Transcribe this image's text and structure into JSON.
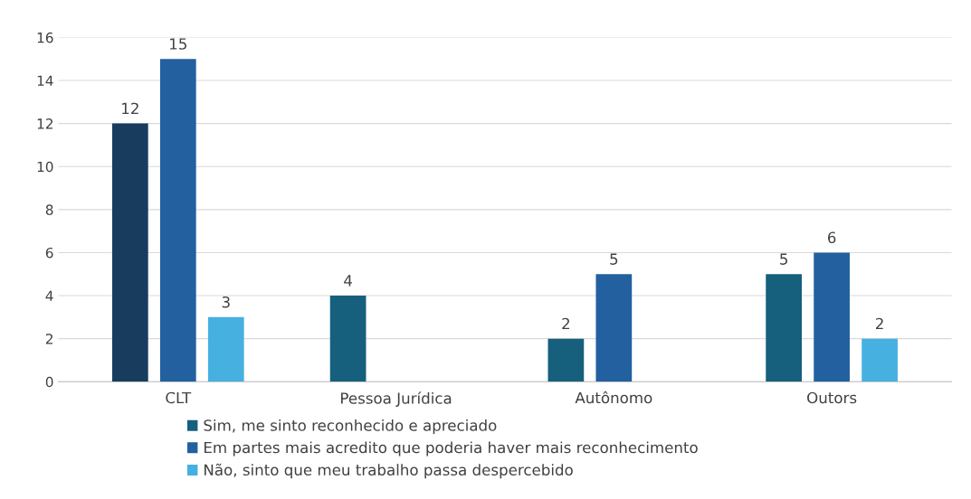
{
  "chart_data": {
    "type": "bar",
    "categories": [
      "CLT",
      "Pessoa Jurídica",
      "Autônomo",
      "Outors"
    ],
    "series": [
      {
        "name": "Sim, me sinto reconhecido e apreciado",
        "color": "#165f7d",
        "colors": [
          "#173c5e",
          "#165f7d",
          "#165f7d",
          "#165f7d"
        ],
        "values": [
          12,
          4,
          2,
          5
        ]
      },
      {
        "name": "Em partes mais acredito que poderia haver mais reconhecimento",
        "color": "#2260a0",
        "values": [
          15,
          null,
          5,
          6
        ]
      },
      {
        "name": "Não, sinto que meu trabalho passa despercebido",
        "color": "#46b0e0",
        "values": [
          3,
          null,
          null,
          2
        ]
      }
    ],
    "ylim": [
      0,
      16
    ],
    "yticks": [
      0,
      2,
      4,
      6,
      8,
      10,
      12,
      14,
      16
    ],
    "grid": "y",
    "legend": "bottom",
    "data_labels": true
  }
}
